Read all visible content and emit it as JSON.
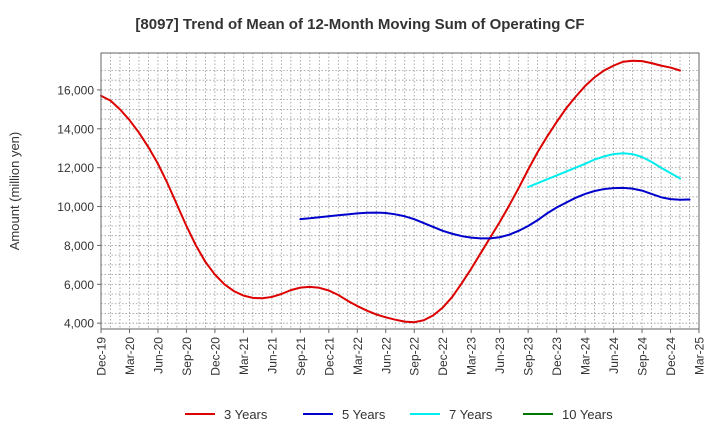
{
  "chart_data": {
    "type": "line",
    "title": "[8097]  Trend of Mean of 12-Month Moving Sum of Operating CF",
    "xlabel": "",
    "ylabel": "Amount (million yen)",
    "ylim": [
      3700,
      17900
    ],
    "yticks": [
      4000,
      6000,
      8000,
      10000,
      12000,
      14000,
      16000
    ],
    "ytick_labels": [
      "4,000",
      "6,000",
      "8,000",
      "10,000",
      "12,000",
      "14,000",
      "16,000"
    ],
    "xticks": [
      "Dec-19",
      "Mar-20",
      "Jun-20",
      "Sep-20",
      "Dec-20",
      "Mar-21",
      "Jun-21",
      "Sep-21",
      "Dec-21",
      "Mar-22",
      "Jun-22",
      "Sep-22",
      "Dec-22",
      "Mar-23",
      "Jun-23",
      "Sep-23",
      "Dec-23",
      "Mar-24",
      "Jun-24",
      "Sep-24",
      "Dec-24",
      "Mar-25"
    ],
    "grid": true,
    "legend_position": "bottom",
    "series": [
      {
        "name": "3 Years",
        "color": "#dd0000",
        "start_index": 0,
        "values": [
          15700,
          15450,
          15000,
          14450,
          13800,
          13050,
          12200,
          11200,
          10100,
          9000,
          8000,
          7150,
          6500,
          6000,
          5650,
          5420,
          5300,
          5280,
          5350,
          5500,
          5700,
          5830,
          5870,
          5820,
          5680,
          5450,
          5150,
          4880,
          4650,
          4450,
          4300,
          4180,
          4080,
          4050,
          4150,
          4400,
          4800,
          5350,
          6050,
          6800,
          7600,
          8400,
          9200,
          10050,
          10950,
          11900,
          12800,
          13600,
          14350,
          15050,
          15650,
          16200,
          16650,
          17000,
          17250,
          17450,
          17500,
          17480,
          17380,
          17250,
          17150,
          17000
        ]
      },
      {
        "name": "5 Years",
        "color": "#0000cc",
        "start_index": 21,
        "values": [
          9350,
          9400,
          9450,
          9500,
          9550,
          9600,
          9650,
          9680,
          9690,
          9670,
          9600,
          9500,
          9350,
          9150,
          8950,
          8750,
          8600,
          8480,
          8400,
          8360,
          8360,
          8420,
          8550,
          8750,
          9000,
          9300,
          9650,
          9950,
          10200,
          10450,
          10650,
          10800,
          10900,
          10950,
          10960,
          10920,
          10820,
          10650,
          10480,
          10380,
          10350,
          10360
        ]
      },
      {
        "name": "7 Years",
        "color": "#00eeee",
        "start_index": 45,
        "values": [
          11000,
          11200,
          11400,
          11600,
          11800,
          12000,
          12200,
          12420,
          12580,
          12700,
          12740,
          12700,
          12550,
          12300,
          12000,
          11720,
          11450
        ]
      },
      {
        "name": "10 Years",
        "color": "#007700",
        "start_index": 0,
        "values": []
      }
    ]
  }
}
